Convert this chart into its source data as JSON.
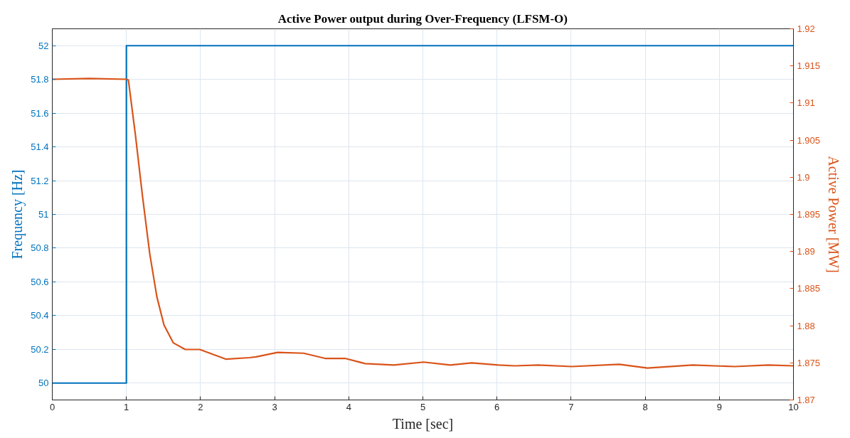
{
  "chart_data": {
    "type": "line",
    "title": "Active Power output during Over-Frequency (LFSM-O)",
    "xlabel": "Time [sec]",
    "ylabel": "Frequency [Hz]",
    "y2label": "Active Power [MW]",
    "xlim": [
      0,
      10
    ],
    "xticks": [
      0,
      1,
      2,
      3,
      4,
      5,
      6,
      7,
      8,
      9,
      10
    ],
    "ylim": [
      49.9,
      52.1
    ],
    "yticks": [
      50,
      50.2,
      50.4,
      50.6,
      50.8,
      51,
      51.2,
      51.4,
      51.6,
      51.8,
      52
    ],
    "y2lim": [
      1.87,
      1.92
    ],
    "y2ticks": [
      1.87,
      1.875,
      1.88,
      1.885,
      1.89,
      1.895,
      1.9,
      1.905,
      1.91,
      1.915,
      1.92
    ],
    "grid": true,
    "series": [
      {
        "type": "step",
        "color": "#0072bd",
        "x": [
          0,
          1,
          10
        ],
        "values": [
          50,
          52,
          52
        ]
      },
      {
        "axis": "y2",
        "color": "#d95319",
        "x": [
          0,
          0.5,
          1.0,
          1.027,
          1.123,
          1.219,
          1.315,
          1.411,
          1.507,
          1.632,
          1.795,
          1.99,
          2.34,
          2.66,
          2.75,
          3.04,
          3.39,
          3.68,
          3.95,
          4.22,
          4.61,
          5.01,
          5.37,
          5.66,
          6.02,
          6.24,
          6.56,
          7.01,
          7.65,
          8.03,
          8.64,
          9.21,
          9.66,
          10
        ],
        "values": [
          1.9132,
          1.9133,
          1.9132,
          1.9131,
          1.9056,
          1.8973,
          1.8897,
          1.8839,
          1.8801,
          1.8777,
          1.8768,
          1.8768,
          1.8755,
          1.8757,
          1.8758,
          1.8764,
          1.8763,
          1.8756,
          1.8756,
          1.8749,
          1.8747,
          1.8751,
          1.8747,
          1.875,
          1.8747,
          1.8746,
          1.8747,
          1.8745,
          1.8748,
          1.8743,
          1.8747,
          1.8745,
          1.8747,
          1.8746
        ]
      }
    ]
  }
}
